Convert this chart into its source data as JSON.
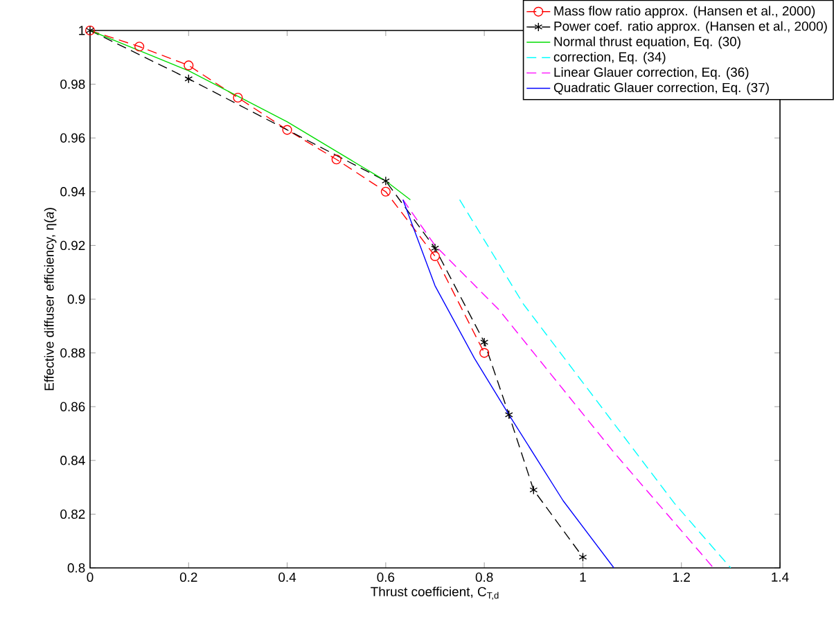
{
  "chart_data": {
    "type": "line",
    "xlabel": "Thrust coefficient, C$_{T,d}$",
    "ylabel": "Effective diffuser efficiency, η(*a*)",
    "xlim": [
      0,
      1.4
    ],
    "ylim": [
      0.8,
      1
    ],
    "xticks": [
      0,
      0.2,
      0.4,
      0.6,
      0.8,
      1,
      1.2,
      1.4
    ],
    "yticks": [
      0.8,
      0.82,
      0.84,
      0.86,
      0.88,
      0.9,
      0.92,
      0.94,
      0.96,
      0.98,
      1
    ],
    "grid": false,
    "legend": "top right",
    "series": [
      {
        "name": "Mass flow ratio approx. (Hansen et al., 2000)",
        "color": "#ff0000",
        "marker": "circle",
        "line_style": "dashed",
        "x": [
          0,
          0.1,
          0.2,
          0.3,
          0.4,
          0.5,
          0.6,
          0.7,
          0.8
        ],
        "values": [
          1,
          0.994,
          0.987,
          0.975,
          0.963,
          0.952,
          0.94,
          0.916,
          0.88
        ]
      },
      {
        "name": "Power coef. ratio approx.  (Hansen et al., 2000)",
        "color": "#000000",
        "marker": "cross",
        "line_style": "dashed",
        "x": [
          0,
          0.2,
          0.6,
          0.7,
          0.8,
          0.85,
          0.9,
          1.0
        ],
        "values": [
          1,
          0.982,
          0.944,
          0.919,
          0.884,
          0.857,
          0.829,
          0.804
        ]
      },
      {
        "name": "Normal thrust equation, Eq. (30)",
        "color": "#00dd00",
        "marker": "none",
        "line_style": "solid",
        "x": [
          0,
          0.2,
          0.4,
          0.6,
          0.65
        ],
        "values": [
          1,
          0.985,
          0.966,
          0.944,
          0.937
        ]
      },
      {
        "name": "correction, Eq. (34)",
        "color": "#00ffff",
        "marker": "none",
        "line_style": "dashed",
        "x": [
          0.75,
          0.88,
          1.186,
          1.3
        ],
        "values": [
          0.937,
          0.898,
          0.824,
          0.8
        ]
      },
      {
        "name": "Linear Glauer correction, Eq. (36)",
        "color": "#ff00ff",
        "marker": "none",
        "line_style": "dashed",
        "x": [
          0.635,
          0.7,
          0.83,
          1.063,
          1.265
        ],
        "values": [
          0.937,
          0.92,
          0.896,
          0.843,
          0.8
        ]
      },
      {
        "name": "Quadratic Glauer correction, Eq. (37)",
        "color": "#0000ff",
        "marker": "none",
        "line_style": "solid",
        "x": [
          0.635,
          0.7,
          0.78,
          0.85,
          0.96,
          1.063
        ],
        "values": [
          0.937,
          0.905,
          0.878,
          0.857,
          0.825,
          0.8
        ]
      }
    ]
  }
}
